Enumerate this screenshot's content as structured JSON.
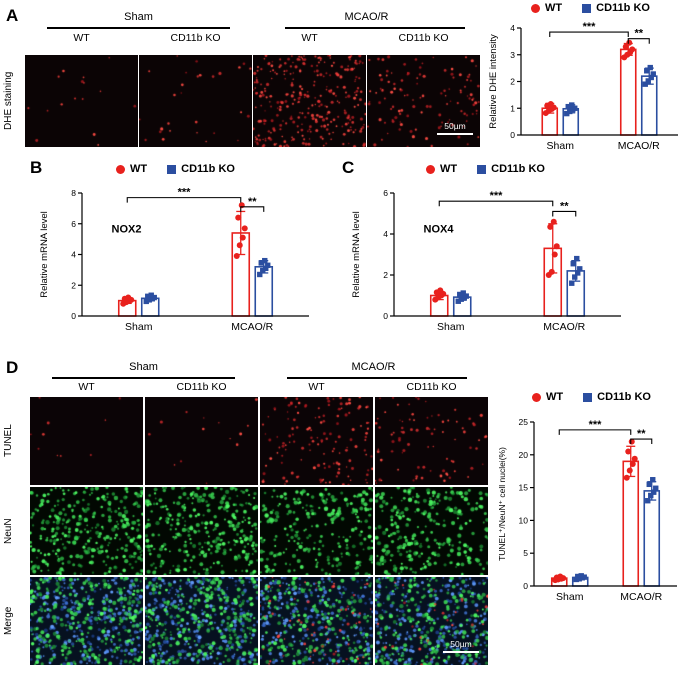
{
  "figure": {
    "panels": {
      "A": {
        "label": "A",
        "side_label": "DHE staining",
        "group_headers": [
          "Sham",
          "MCAO/R"
        ],
        "col_labels": [
          "WT",
          "CD11b KO",
          "WT",
          "CD11b KO"
        ],
        "scale_bar": "50µm"
      },
      "B": {
        "label": "B"
      },
      "C": {
        "label": "C"
      },
      "D": {
        "label": "D",
        "side_labels": [
          "TUNEL",
          "NeuN",
          "Merge"
        ],
        "group_headers": [
          "Sham",
          "MCAO/R"
        ],
        "col_labels": [
          "WT",
          "CD11b KO",
          "WT",
          "CD11b KO"
        ],
        "scale_bar": "50µm"
      }
    },
    "legend": {
      "wt": "WT",
      "ko": "CD11b KO"
    },
    "colors": {
      "wt": "#e8211d",
      "ko": "#2b4ea0"
    }
  },
  "chart_data": [
    {
      "id": "dhe-intensity",
      "type": "bar",
      "categories": [
        "Sham",
        "MCAO/R"
      ],
      "ylabel": "Relative DHE intensity",
      "ylim": [
        0,
        4
      ],
      "yticks": [
        0,
        1,
        2,
        3,
        4
      ],
      "series": [
        {
          "name": "WT",
          "color": "#e8211d",
          "marker": "circle",
          "values": [
            1.0,
            3.2
          ],
          "errors": [
            0.18,
            0.22
          ],
          "points": [
            [
              0.82,
              0.9,
              0.97,
              1.03,
              1.1,
              1.16
            ],
            [
              2.9,
              3.0,
              3.1,
              3.2,
              3.3,
              3.45
            ]
          ]
        },
        {
          "name": "CD11b KO",
          "color": "#2b4ea0",
          "marker": "square",
          "values": [
            0.98,
            2.2
          ],
          "errors": [
            0.15,
            0.3
          ],
          "points": [
            [
              0.8,
              0.88,
              0.95,
              1.0,
              1.06,
              1.12
            ],
            [
              1.9,
              2.02,
              2.15,
              2.28,
              2.4,
              2.52
            ]
          ]
        }
      ],
      "significance": [
        {
          "from": [
            0,
            0
          ],
          "to": [
            1,
            0
          ],
          "y": 3.85,
          "label": "***"
        },
        {
          "from": [
            1,
            0
          ],
          "to": [
            1,
            1
          ],
          "y": 3.6,
          "label": "**"
        }
      ]
    },
    {
      "id": "nox2-mrna",
      "type": "bar",
      "inner_title": "NOX2",
      "categories": [
        "Sham",
        "MCAO/R"
      ],
      "ylabel": "Relative mRNA level",
      "ylim": [
        0,
        8
      ],
      "yticks": [
        0,
        2,
        4,
        6,
        8
      ],
      "series": [
        {
          "name": "WT",
          "color": "#e8211d",
          "marker": "circle",
          "values": [
            1.0,
            5.4
          ],
          "errors": [
            0.18,
            1.4
          ],
          "points": [
            [
              0.8,
              0.9,
              1.0,
              1.05,
              1.12,
              1.2
            ],
            [
              3.9,
              4.6,
              5.1,
              5.7,
              6.4,
              7.2
            ]
          ]
        },
        {
          "name": "CD11b KO",
          "color": "#2b4ea0",
          "marker": "square",
          "values": [
            1.15,
            3.2
          ],
          "errors": [
            0.15,
            0.4
          ],
          "points": [
            [
              0.95,
              1.05,
              1.12,
              1.2,
              1.28,
              1.35
            ],
            [
              2.7,
              2.95,
              3.1,
              3.3,
              3.45,
              3.6
            ]
          ]
        }
      ],
      "significance": [
        {
          "from": [
            0,
            0
          ],
          "to": [
            1,
            0
          ],
          "y": 7.7,
          "label": "***"
        },
        {
          "from": [
            1,
            0
          ],
          "to": [
            1,
            1
          ],
          "y": 7.1,
          "label": "**"
        }
      ]
    },
    {
      "id": "nox4-mrna",
      "type": "bar",
      "inner_title": "NOX4",
      "categories": [
        "Sham",
        "MCAO/R"
      ],
      "ylabel": "Relative mRNA level",
      "ylim": [
        0,
        6
      ],
      "yticks": [
        0,
        2,
        4,
        6
      ],
      "series": [
        {
          "name": "WT",
          "color": "#e8211d",
          "marker": "circle",
          "values": [
            1.0,
            3.3
          ],
          "errors": [
            0.2,
            1.2
          ],
          "points": [
            [
              0.8,
              0.9,
              1.0,
              1.08,
              1.15,
              1.25
            ],
            [
              2.0,
              2.15,
              3.0,
              3.4,
              4.35,
              4.6
            ]
          ]
        },
        {
          "name": "CD11b KO",
          "color": "#2b4ea0",
          "marker": "square",
          "values": [
            0.92,
            2.2
          ],
          "errors": [
            0.15,
            0.5
          ],
          "points": [
            [
              0.72,
              0.82,
              0.9,
              0.97,
              1.05,
              1.12
            ],
            [
              1.6,
              1.9,
              2.1,
              2.3,
              2.55,
              2.8
            ]
          ]
        }
      ],
      "significance": [
        {
          "from": [
            0,
            0
          ],
          "to": [
            1,
            0
          ],
          "y": 5.6,
          "label": "***"
        },
        {
          "from": [
            1,
            0
          ],
          "to": [
            1,
            1
          ],
          "y": 5.1,
          "label": "**"
        }
      ]
    },
    {
      "id": "tunel-positive-nuclei",
      "type": "bar",
      "categories": [
        "Sham",
        "MCAO/R"
      ],
      "ylabel": "TUNEL⁺/NeuN⁺ cell nuclei(%)",
      "ylim": [
        0,
        25
      ],
      "yticks": [
        0,
        5,
        10,
        15,
        20,
        25
      ],
      "series": [
        {
          "name": "WT",
          "color": "#e8211d",
          "marker": "circle",
          "values": [
            1.2,
            19
          ],
          "errors": [
            0.3,
            2.3
          ],
          "points": [
            [
              0.9,
              1.0,
              1.1,
              1.2,
              1.3,
              1.45
            ],
            [
              16.5,
              17.6,
              18.6,
              19.4,
              20.5,
              22.0
            ]
          ]
        },
        {
          "name": "CD11b KO",
          "color": "#2b4ea0",
          "marker": "square",
          "values": [
            1.3,
            14.5
          ],
          "errors": [
            0.3,
            1.4
          ],
          "points": [
            [
              1.0,
              1.1,
              1.25,
              1.35,
              1.45,
              1.55
            ],
            [
              13.0,
              13.8,
              14.3,
              14.9,
              15.5,
              16.2
            ]
          ]
        }
      ],
      "significance": [
        {
          "from": [
            0,
            0
          ],
          "to": [
            1,
            0
          ],
          "y": 23.8,
          "label": "***"
        },
        {
          "from": [
            1,
            0
          ],
          "to": [
            1,
            1
          ],
          "y": 22.4,
          "label": "**"
        }
      ]
    }
  ],
  "microscopy": {
    "panelA": {
      "bg": "#0b0405",
      "cells": [
        {
          "red": 16
        },
        {
          "red": 28
        },
        {
          "red": 300
        },
        {
          "red": 120
        }
      ]
    },
    "panelD": {
      "rows": [
        {
          "label": "TUNEL",
          "bg": "#0b0406",
          "cells": [
            {
              "red": 10
            },
            {
              "red": 14
            },
            {
              "red": 140
            },
            {
              "red": 85
            }
          ]
        },
        {
          "label": "NeuN",
          "bg": "#020802",
          "cells": [
            {
              "green": 320
            },
            {
              "green": 320
            },
            {
              "green": 250
            },
            {
              "green": 270
            }
          ]
        },
        {
          "label": "Merge",
          "bg": "#061120",
          "cells": [
            {
              "green": 280,
              "blue": 300
            },
            {
              "green": 280,
              "blue": 300
            },
            {
              "red": 60,
              "green": 210,
              "blue": 250
            },
            {
              "red": 30,
              "green": 230,
              "blue": 260
            }
          ]
        }
      ]
    }
  }
}
